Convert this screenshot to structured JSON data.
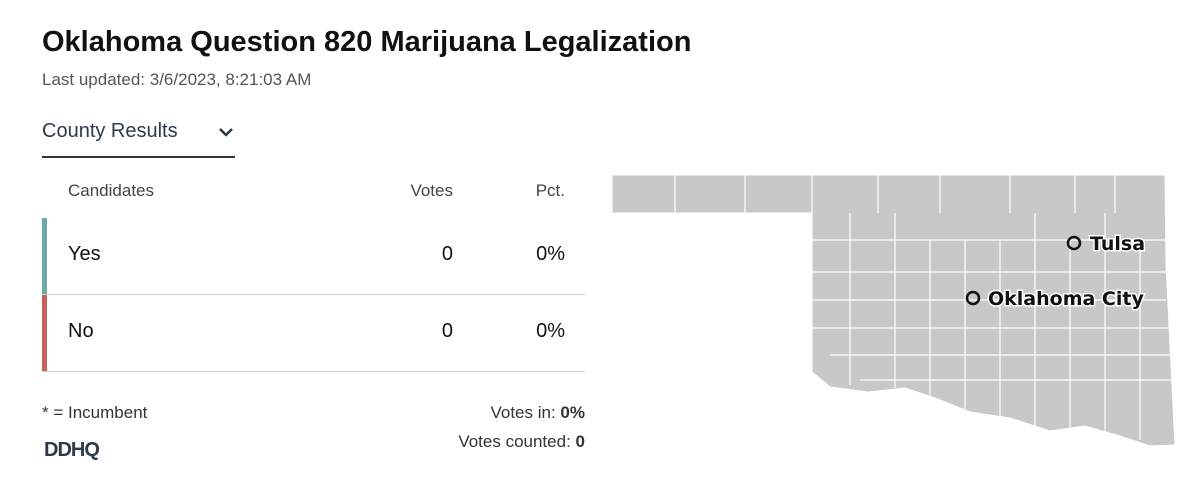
{
  "header": {
    "title": "Oklahoma Question 820 Marijuana Legalization",
    "updated": "Last updated: 3/6/2023, 8:21:03 AM"
  },
  "view": "County Results",
  "table": {
    "columns": [
      "Candidates",
      "Votes",
      "Pct."
    ],
    "rows": [
      [
        "Yes",
        0,
        "0%"
      ],
      [
        "No",
        0,
        "0%"
      ]
    ]
  },
  "footer": {
    "note": "* = Incumbent",
    "votes_in_label": "Votes in:",
    "votes_in": "0%",
    "votes_counted_label": "Votes counted:",
    "votes_counted": 0,
    "logo": "DDHQ"
  },
  "map": {
    "cities": [
      "Tulsa",
      "Oklahoma City"
    ]
  }
}
